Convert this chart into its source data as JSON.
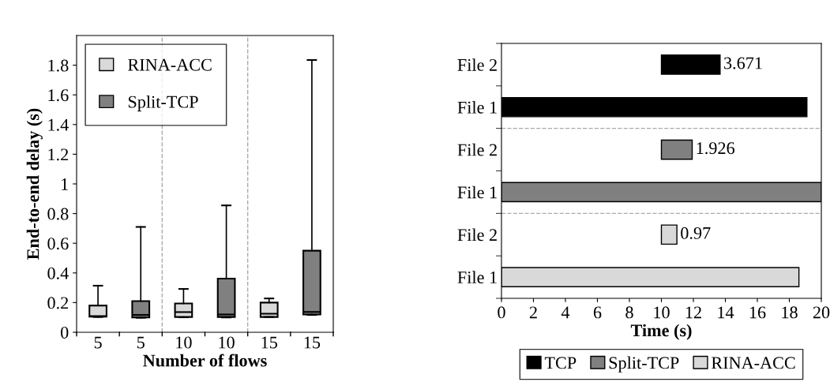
{
  "chart_data": [
    {
      "type": "box",
      "ylabel": "End-to-end delay (s)",
      "xlabel": "Number of flows",
      "categories": [
        "5",
        "5",
        "10",
        "10",
        "15",
        "15"
      ],
      "ylim": [
        0,
        2.0
      ],
      "yticks": [
        0,
        0.2,
        0.4,
        0.6,
        0.8,
        1,
        1.2,
        1.4,
        1.6,
        1.8
      ],
      "legend": "top left",
      "grid": false,
      "series": [
        {
          "name": "RINA-ACC",
          "color": "#d9d9d9",
          "boxes": [
            {
              "low": 0.103,
              "q1": 0.105,
              "median": 0.109,
              "q3": 0.18,
              "high": 0.314
            },
            null,
            {
              "low": 0.101,
              "q1": 0.103,
              "median": 0.136,
              "q3": 0.194,
              "high": 0.292
            },
            null,
            {
              "low": 0.103,
              "q1": 0.103,
              "median": 0.125,
              "q3": 0.2,
              "high": 0.228
            },
            null
          ]
        },
        {
          "name": "Split-TCP",
          "color": "#808080",
          "boxes": [
            null,
            {
              "low": 0.098,
              "q1": 0.1,
              "median": 0.117,
              "q3": 0.21,
              "high": 0.71
            },
            null,
            {
              "low": 0.1,
              "q1": 0.103,
              "median": 0.12,
              "q3": 0.362,
              "high": 0.855
            },
            null,
            {
              "low": 0.117,
              "q1": 0.12,
              "median": 0.137,
              "q3": 0.55,
              "high": 1.835
            }
          ]
        }
      ]
    },
    {
      "type": "bar",
      "orientation": "horizontal",
      "xlabel": "Time (s)",
      "categories": [
        "File 2",
        "File 1",
        "File 2",
        "File 1",
        "File 2",
        "File 1"
      ],
      "xlim": [
        0,
        20
      ],
      "xticks": [
        0,
        2,
        4,
        6,
        8,
        10,
        12,
        14,
        16,
        18,
        20
      ],
      "legend": "bottom",
      "grid": false,
      "series": [
        {
          "name": "TCP",
          "color": "#000000",
          "values": [
            3.671,
            19.1,
            null,
            null,
            null,
            null
          ],
          "base": [
            10,
            0,
            null,
            null,
            null,
            null
          ],
          "value_labels": [
            "3.671",
            null,
            null,
            null,
            null,
            null
          ]
        },
        {
          "name": "Split-TCP",
          "color": "#808080",
          "values": [
            null,
            null,
            1.926,
            20.0,
            null,
            null
          ],
          "base": [
            null,
            null,
            10,
            0,
            null,
            null
          ],
          "value_labels": [
            null,
            null,
            "1.926",
            null,
            null,
            null
          ]
        },
        {
          "name": "RINA-ACC",
          "color": "#d9d9d9",
          "values": [
            null,
            null,
            null,
            null,
            0.97,
            18.6
          ],
          "base": [
            null,
            null,
            null,
            null,
            10,
            0
          ],
          "value_labels": [
            null,
            null,
            null,
            null,
            "0.97",
            null
          ]
        }
      ]
    }
  ]
}
